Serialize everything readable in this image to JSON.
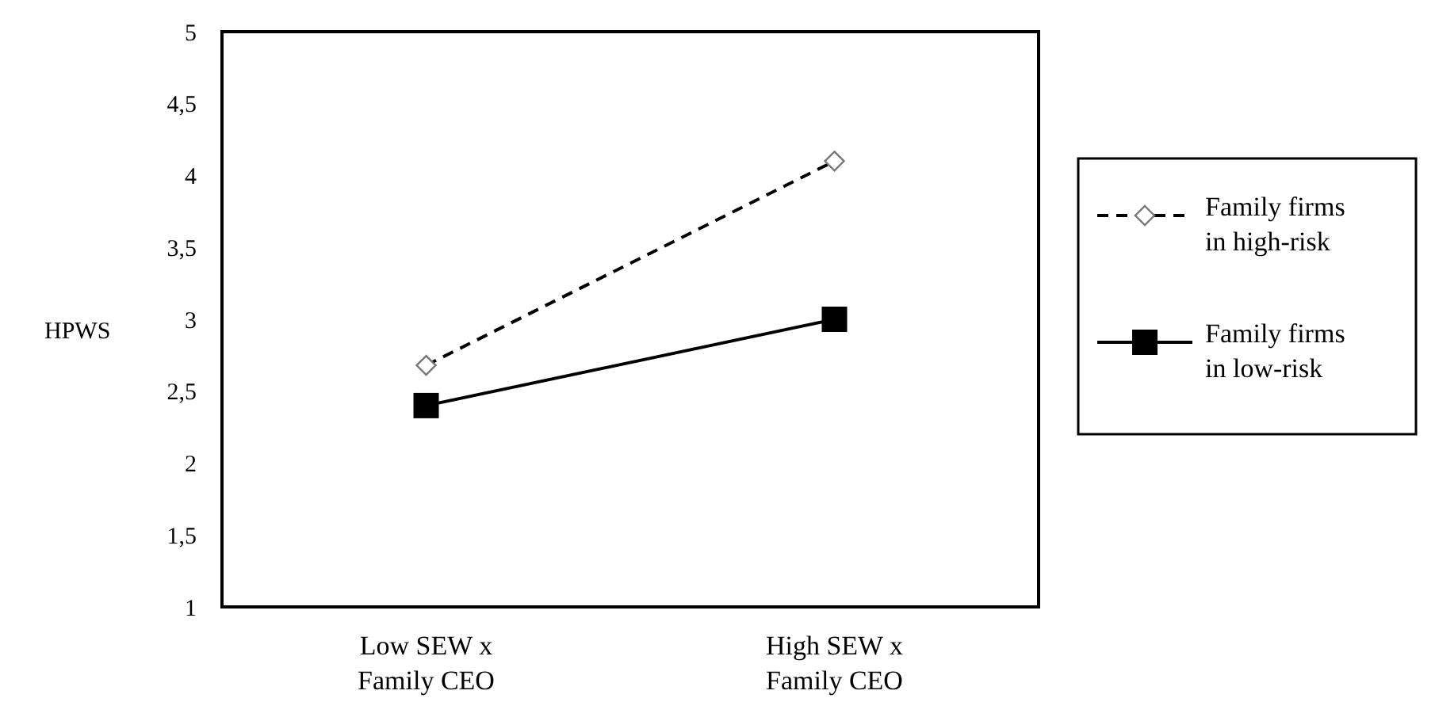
{
  "chart_data": {
    "type": "line",
    "ylabel": "HPWS",
    "categories": [
      "Low SEW x\nFamily CEO",
      "High SEW x\nFamily CEO"
    ],
    "series": [
      {
        "name": "Family firms\nin high-risk",
        "color": "#000000",
        "values": [
          2.68,
          4.1
        ],
        "marker": "diamond",
        "line_style": "dashed"
      },
      {
        "name": "Family firms\nin low-risk",
        "color": "#000000",
        "values": [
          2.4,
          3.0
        ],
        "marker": "square",
        "line_style": "solid"
      }
    ],
    "ylim": [
      1,
      5
    ],
    "yticks": [
      1,
      {
        "value": 1.5,
        "label": "1,5"
      },
      2,
      {
        "value": 2.5,
        "label": "2,5"
      },
      3,
      {
        "value": 3.5,
        "label": "3,5"
      },
      4,
      {
        "value": 4.5,
        "label": "4,5"
      },
      5
    ],
    "grid": false,
    "legend": "right"
  }
}
